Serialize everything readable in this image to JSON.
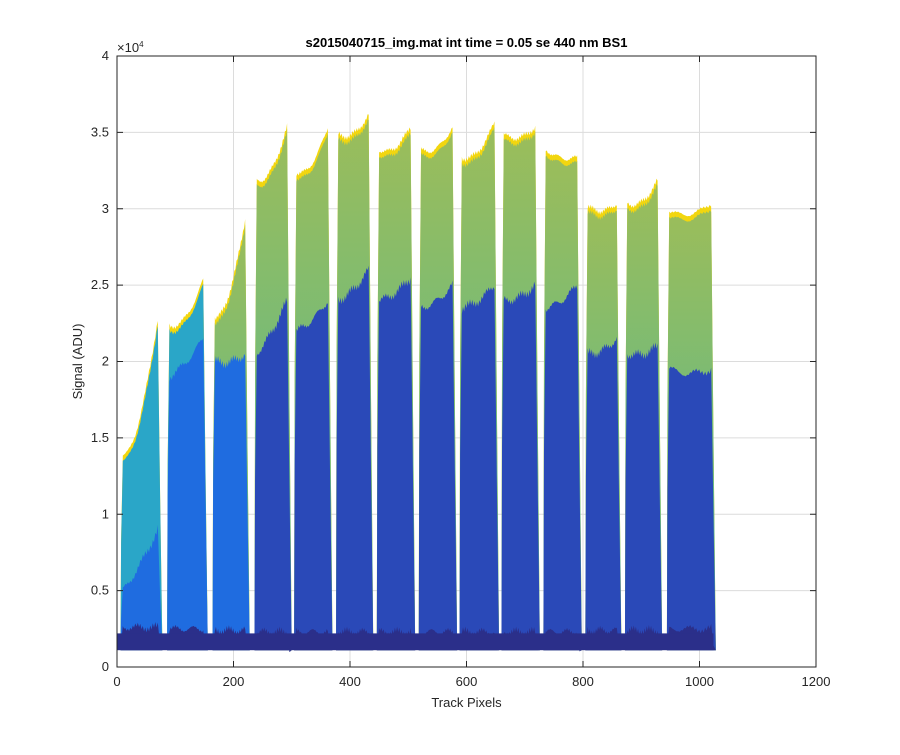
{
  "chart_data": {
    "type": "area",
    "title": "s2015040715_img.mat int time = 0.05 se  440 nm BS1",
    "xlabel": "Track Pixels",
    "ylabel": "Signal (ADU)",
    "xlim": [
      0,
      1200
    ],
    "ylim": [
      0,
      40000
    ],
    "x_ticks": [
      0,
      200,
      400,
      600,
      800,
      1000,
      1200
    ],
    "x_tick_labels": [
      "0",
      "200",
      "400",
      "600",
      "800",
      "1000",
      "1200"
    ],
    "y_ticks": [
      0,
      5000,
      10000,
      15000,
      20000,
      25000,
      30000,
      35000,
      40000
    ],
    "y_tick_labels": [
      "0",
      "0.5",
      "1",
      "1.5",
      "2",
      "2.5",
      "3",
      "3.5",
      "4"
    ],
    "y_multiplier": "×10",
    "y_multiplier_exp": "4",
    "grid": true,
    "baseline": 1100,
    "colors": {
      "peak_edge": "#f2d60f",
      "upper": "#4cb89a",
      "middle": "#2a49b8",
      "lower": "#2b2f8a",
      "bright_blue": "#1f6ce0",
      "axis": "#262626",
      "grid": "#dcdcdc"
    },
    "segments": [
      {
        "x_start": 10,
        "x_end": 70,
        "y_start": 13500,
        "y_end": 22500,
        "mid_start": 5000,
        "mid_end": 9000,
        "low": 2600
      },
      {
        "x_start": 90,
        "x_end": 148,
        "y_start": 22000,
        "y_end": 25000,
        "mid_start": 19000,
        "mid_end": 21500,
        "low": 2500
      },
      {
        "x_start": 168,
        "x_end": 220,
        "y_start": 22500,
        "y_end": 29000,
        "mid_start": 20000,
        "mid_end": 20500,
        "low": 2400
      },
      {
        "x_start": 240,
        "x_end": 292,
        "y_start": 31500,
        "y_end": 35000,
        "mid_start": 20500,
        "mid_end": 24000,
        "low": 2300
      },
      {
        "x_start": 308,
        "x_end": 362,
        "y_start": 32000,
        "y_end": 35000,
        "mid_start": 22000,
        "mid_end": 24000,
        "low": 2300
      },
      {
        "x_start": 380,
        "x_end": 432,
        "y_start": 34500,
        "y_end": 35800,
        "mid_start": 24000,
        "mid_end": 26000,
        "low": 2300
      },
      {
        "x_start": 450,
        "x_end": 504,
        "y_start": 33500,
        "y_end": 35000,
        "mid_start": 24000,
        "mid_end": 25500,
        "low": 2300
      },
      {
        "x_start": 522,
        "x_end": 576,
        "y_start": 33500,
        "y_end": 35000,
        "mid_start": 23500,
        "mid_end": 25000,
        "low": 2300
      },
      {
        "x_start": 592,
        "x_end": 648,
        "y_start": 33000,
        "y_end": 35300,
        "mid_start": 23500,
        "mid_end": 25000,
        "low": 2300
      },
      {
        "x_start": 664,
        "x_end": 718,
        "y_start": 34500,
        "y_end": 35000,
        "mid_start": 24000,
        "mid_end": 25000,
        "low": 2300
      },
      {
        "x_start": 736,
        "x_end": 790,
        "y_start": 33500,
        "y_end": 33000,
        "mid_start": 23500,
        "mid_end": 25000,
        "low": 2300
      },
      {
        "x_start": 808,
        "x_end": 858,
        "y_start": 29800,
        "y_end": 30000,
        "mid_start": 20500,
        "mid_end": 21500,
        "low": 2400
      },
      {
        "x_start": 876,
        "x_end": 928,
        "y_start": 30000,
        "y_end": 31500,
        "mid_start": 20500,
        "mid_end": 21000,
        "low": 2400
      },
      {
        "x_start": 948,
        "x_end": 1020,
        "y_start": 29500,
        "y_end": 30000,
        "mid_start": 19500,
        "mid_end": 19500,
        "low": 2500
      }
    ]
  }
}
